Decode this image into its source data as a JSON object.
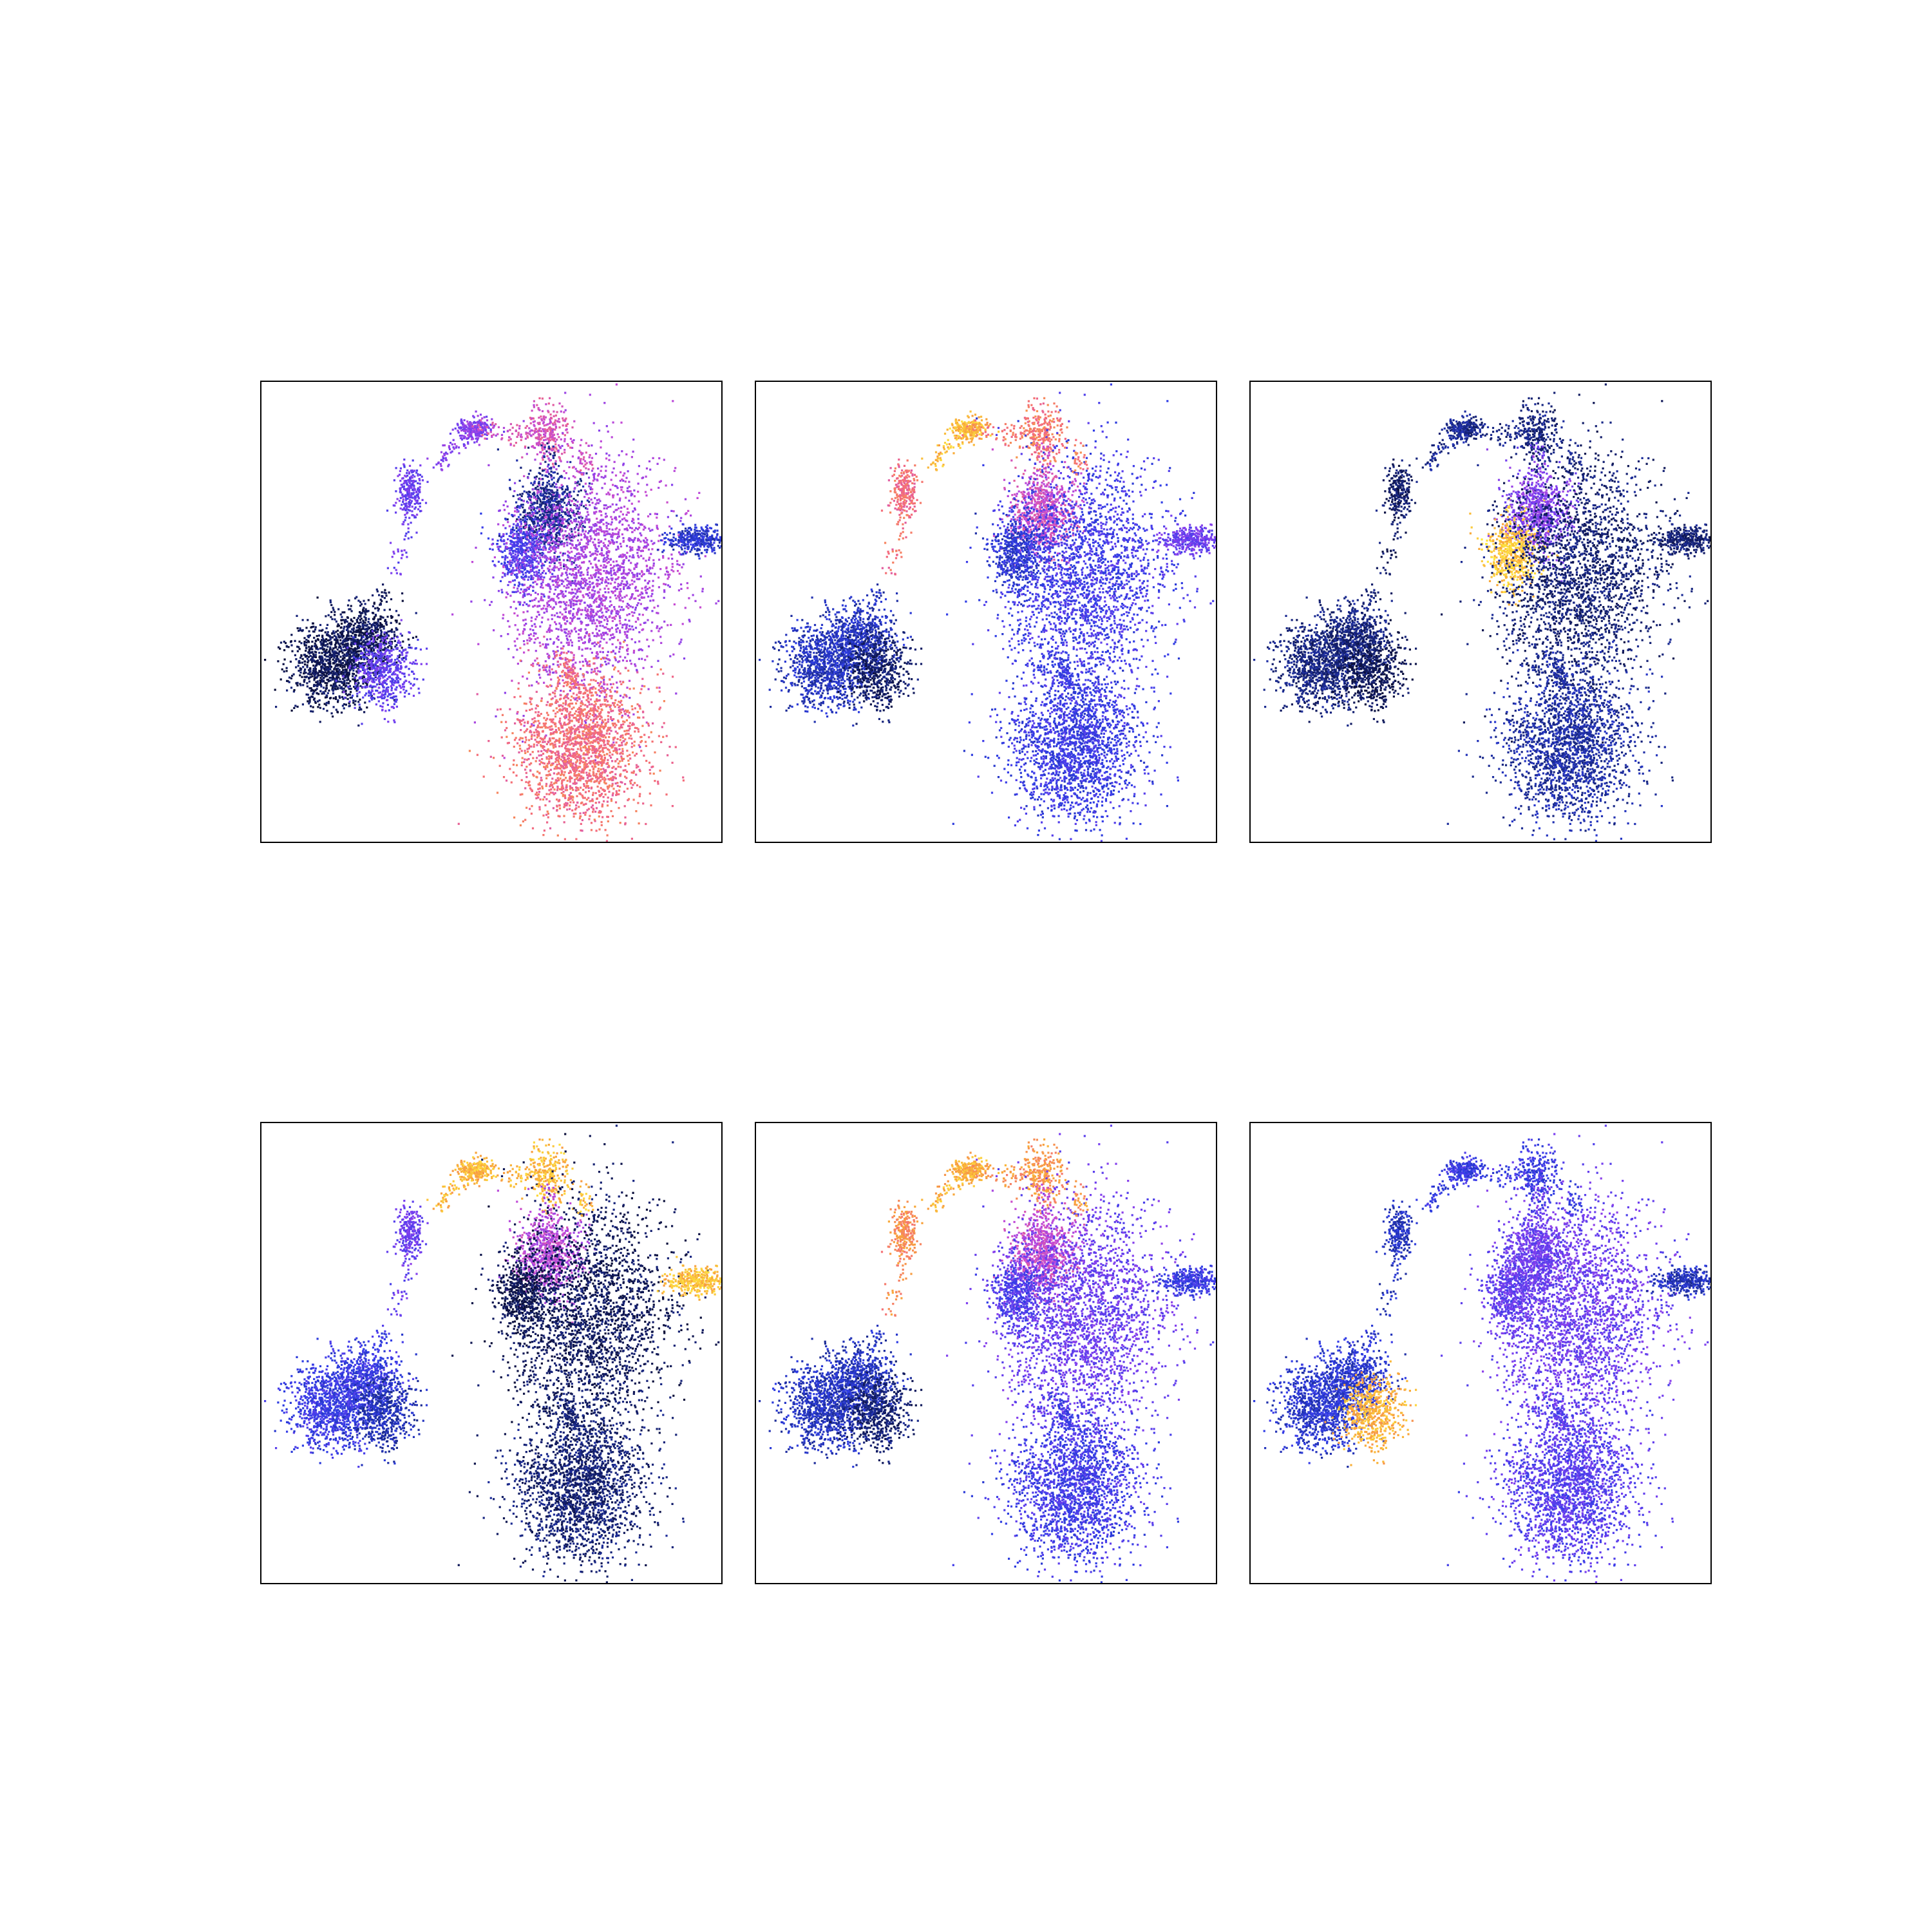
{
  "figure": {
    "type": "scatter-grid",
    "background": "#ffffff",
    "frame_color": "#000000"
  },
  "colormap": {
    "name": "custom-blue-magenta-yellow",
    "stops": [
      "#0b0f3a",
      "#1a2a8c",
      "#2f3ee6",
      "#7b3ff0",
      "#c44ad6",
      "#f46a7e",
      "#f8a53a",
      "#fff23f"
    ]
  },
  "chart_data": [
    {
      "type": "scatter",
      "panel": 1,
      "axes_visible": false,
      "xlim": [
        0,
        1
      ],
      "ylim": [
        0,
        1
      ],
      "cluster_levels": {
        "A": 0.05,
        "A2": 0.38,
        "B": 0.05,
        "C": 0.45,
        "D": 0.62,
        "E": 0.4,
        "F": 0.15,
        "G": 0.35,
        "H": 0.52,
        "I": 0.72,
        "J": 0.92,
        "K": 0.25
      }
    },
    {
      "type": "scatter",
      "panel": 2,
      "axes_visible": false,
      "xlim": [
        0,
        1
      ],
      "ylim": [
        0,
        1
      ],
      "cluster_levels": {
        "A": 0.22,
        "A2": 0.08,
        "B": 0.92,
        "C": 0.9,
        "D": 0.75,
        "E": 0.72,
        "F": 0.6,
        "G": 0.25,
        "H": 0.32,
        "I": 0.3,
        "J": 0.2,
        "K": 0.4
      }
    },
    {
      "type": "scatter",
      "panel": 3,
      "axes_visible": false,
      "xlim": [
        0,
        1
      ],
      "ylim": [
        0,
        1
      ],
      "cluster_levels": {
        "A": 0.12,
        "A2": 0.05,
        "B": 0.18,
        "C": 0.15,
        "D": 0.12,
        "E": 0.08,
        "F": 0.45,
        "G": 0.92,
        "H": 0.1,
        "I": 0.18,
        "J": 0.06,
        "K": 0.1
      }
    },
    {
      "type": "scatter",
      "panel": 4,
      "axes_visible": false,
      "xlim": [
        0,
        1
      ],
      "ylim": [
        0,
        1
      ],
      "cluster_levels": {
        "A": 0.3,
        "A2": 0.2,
        "B": 0.78,
        "C": 0.88,
        "D": 0.9,
        "E": 0.4,
        "F": 0.55,
        "G": 0.04,
        "H": 0.06,
        "I": 0.1,
        "J": 0.26,
        "K": 0.9
      }
    },
    {
      "type": "scatter",
      "panel": 5,
      "axes_visible": false,
      "xlim": [
        0,
        1
      ],
      "ylim": [
        0,
        1
      ],
      "cluster_levels": {
        "A": 0.22,
        "A2": 0.1,
        "B": 0.95,
        "C": 0.88,
        "D": 0.82,
        "E": 0.8,
        "F": 0.58,
        "G": 0.34,
        "H": 0.4,
        "I": 0.32,
        "J": 0.06,
        "K": 0.3
      }
    },
    {
      "type": "scatter",
      "panel": 6,
      "axes_visible": false,
      "xlim": [
        0,
        1
      ],
      "ylim": [
        0,
        1
      ],
      "cluster_levels": {
        "A": 0.25,
        "A2": 0.88,
        "B": 0.32,
        "C": 0.3,
        "D": 0.3,
        "E": 0.22,
        "F": 0.4,
        "G": 0.38,
        "H": 0.4,
        "I": 0.36,
        "J": 0.05,
        "K": 0.22
      }
    }
  ]
}
